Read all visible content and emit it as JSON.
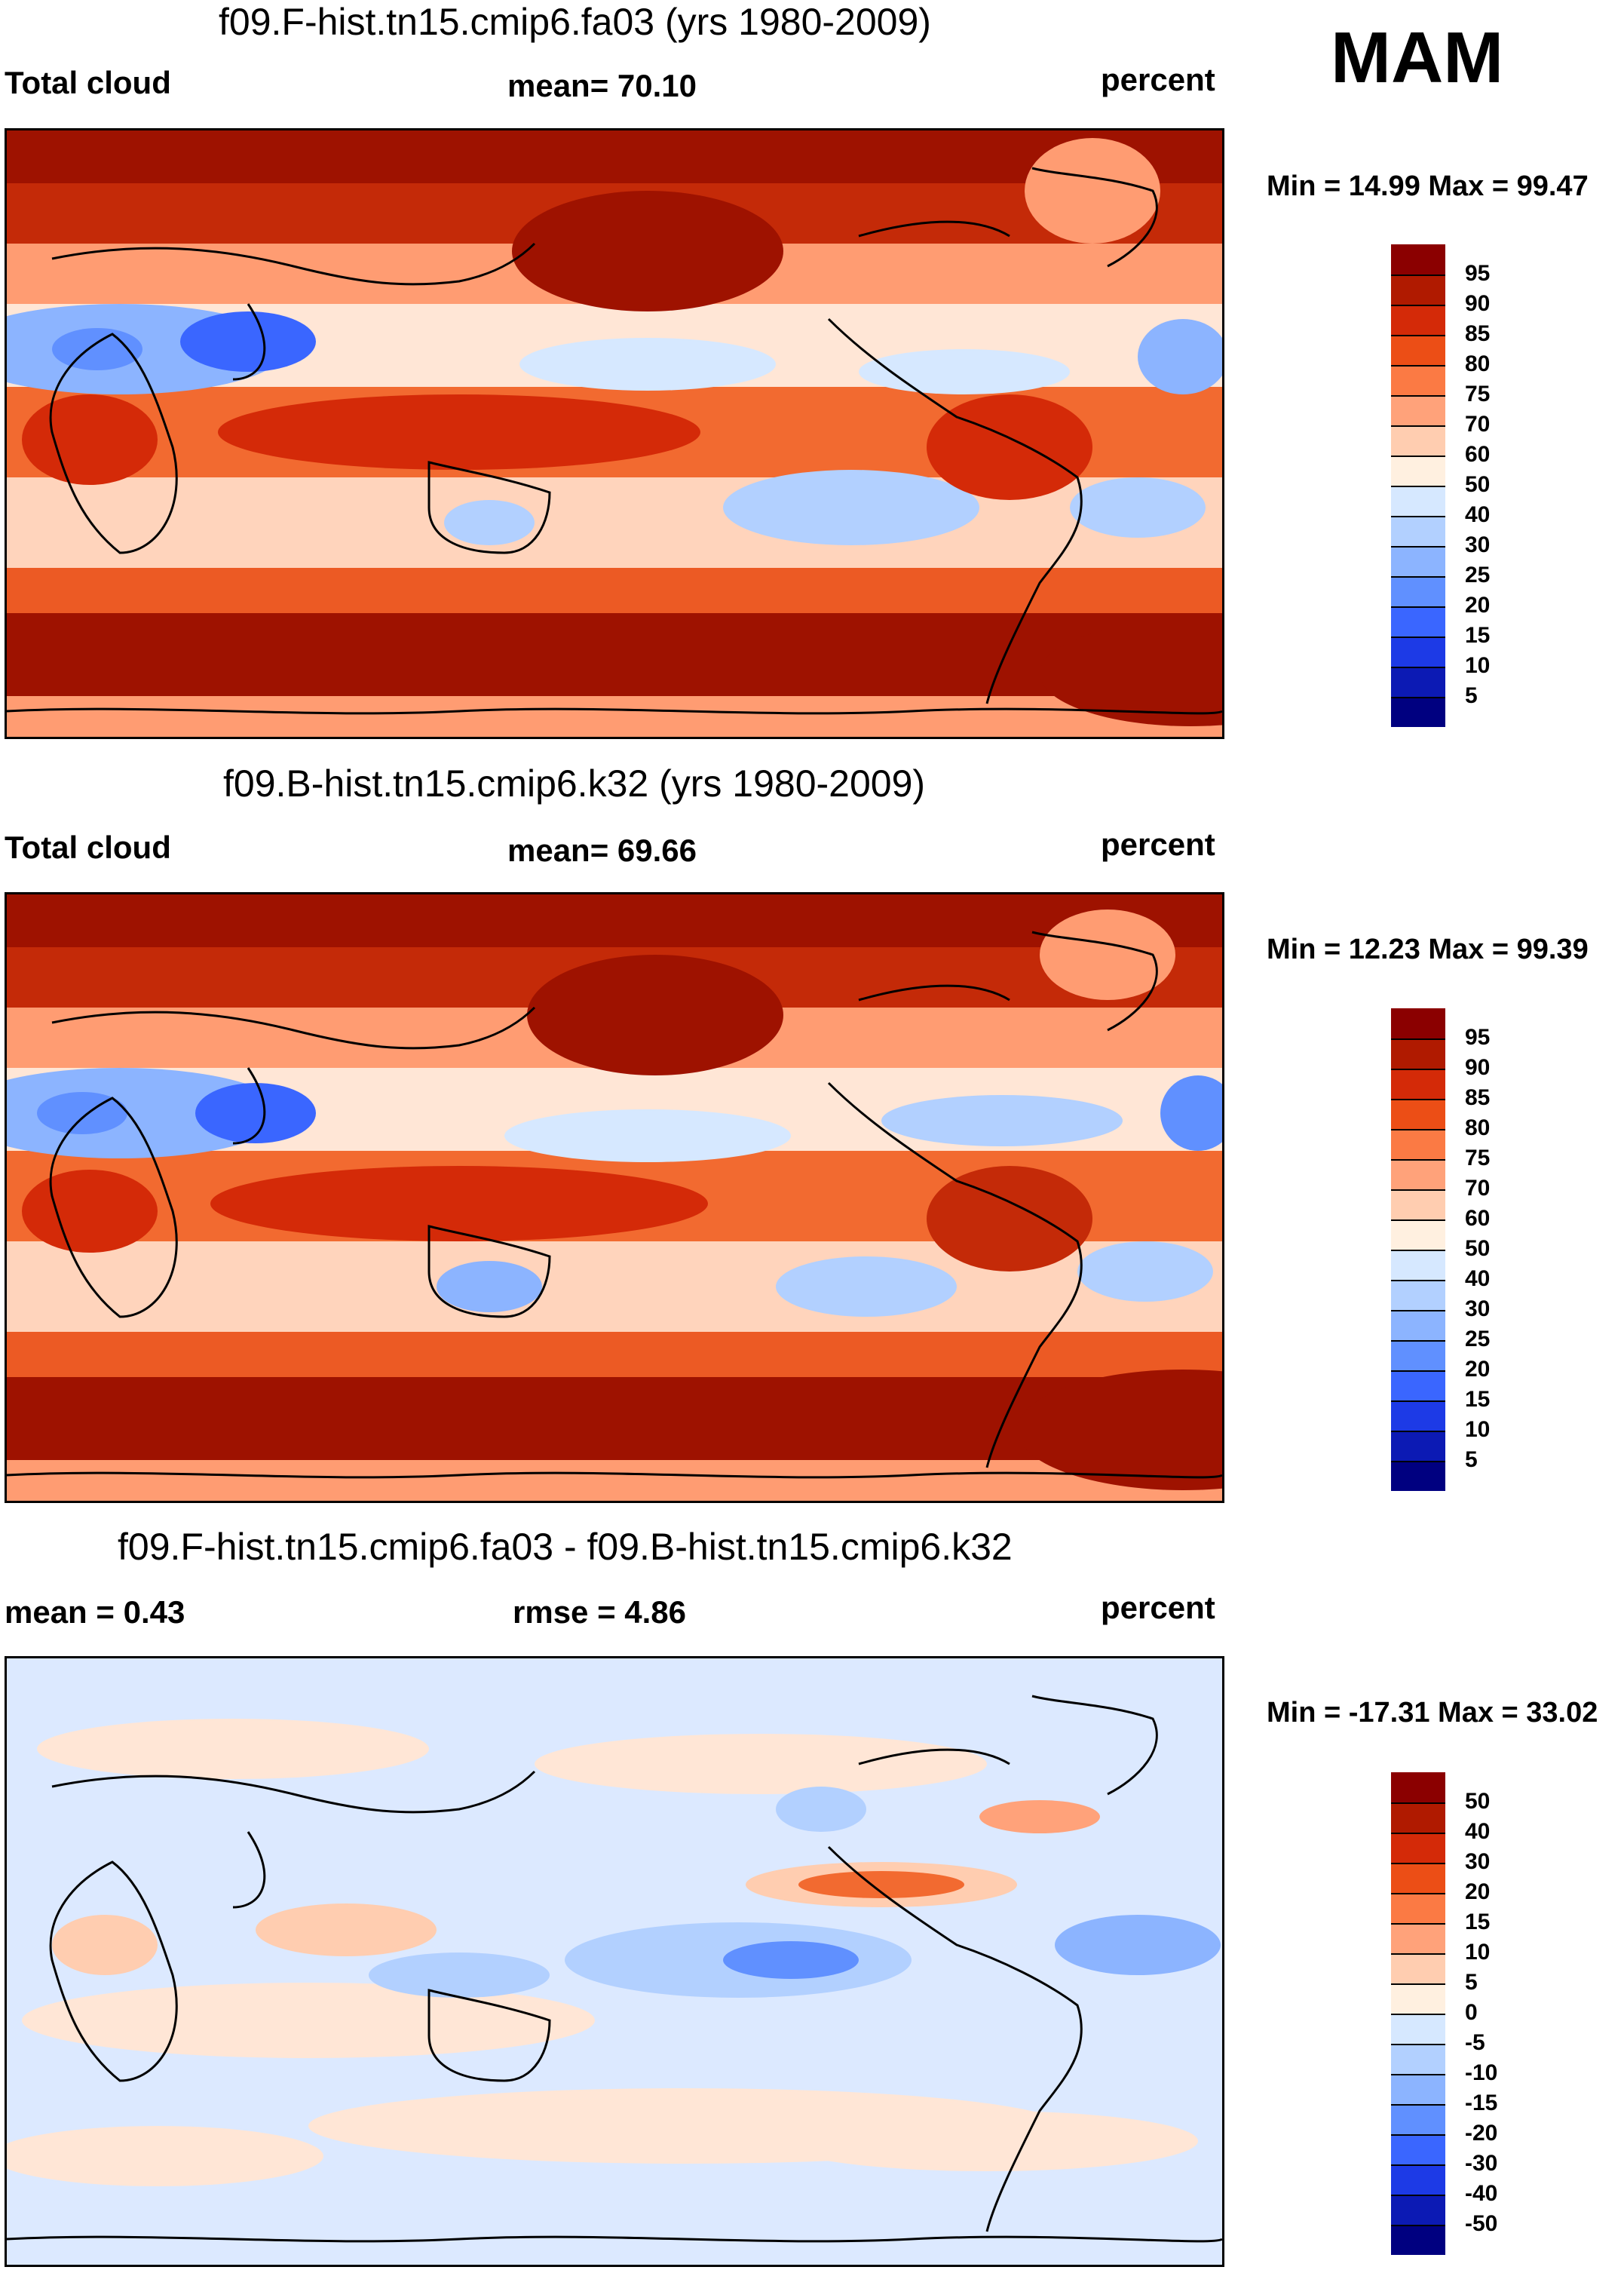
{
  "season": "MAM",
  "panels": [
    {
      "title": "f09.F-hist.tn15.cmip6.fa03 (yrs 1980-2009)",
      "left_label": "Total cloud",
      "mid_label": "mean=  70.10",
      "right_label": "percent",
      "minmax": "Min =  14.99 Max =  99.47",
      "colorbar": {
        "labels": [
          "95",
          "90",
          "85",
          "80",
          "75",
          "70",
          "60",
          "50",
          "40",
          "30",
          "25",
          "20",
          "15",
          "10",
          "5"
        ],
        "colors": [
          "#8b0000",
          "#b01a00",
          "#d42a08",
          "#ec4e16",
          "#fb7a44",
          "#ffa27a",
          "#ffcdb0",
          "#fff0e0",
          "#d6e8ff",
          "#b2d0ff",
          "#8cb4ff",
          "#6090ff",
          "#3a66ff",
          "#1d3ae6",
          "#0c1ab4",
          "#000080"
        ]
      }
    },
    {
      "title": "f09.B-hist.tn15.cmip6.k32 (yrs 1980-2009)",
      "left_label": "Total cloud",
      "mid_label": "mean=  69.66",
      "right_label": "percent",
      "minmax": "Min =  12.23 Max =  99.39",
      "colorbar": {
        "labels": [
          "95",
          "90",
          "85",
          "80",
          "75",
          "70",
          "60",
          "50",
          "40",
          "30",
          "25",
          "20",
          "15",
          "10",
          "5"
        ],
        "colors": [
          "#8b0000",
          "#b01a00",
          "#d42a08",
          "#ec4e16",
          "#fb7a44",
          "#ffa27a",
          "#ffcdb0",
          "#fff0e0",
          "#d6e8ff",
          "#b2d0ff",
          "#8cb4ff",
          "#6090ff",
          "#3a66ff",
          "#1d3ae6",
          "#0c1ab4",
          "#000080"
        ]
      }
    },
    {
      "title": "f09.F-hist.tn15.cmip6.fa03 - f09.B-hist.tn15.cmip6.k32",
      "left_label": "mean =   0.43",
      "mid_label": "rmse =   4.86",
      "right_label": "percent",
      "minmax": "Min = -17.31 Max =  33.02",
      "colorbar": {
        "labels": [
          "50",
          "40",
          "30",
          "20",
          "15",
          "10",
          "5",
          "0",
          "-5",
          "-10",
          "-15",
          "-20",
          "-30",
          "-40",
          "-50"
        ],
        "colors": [
          "#8b0000",
          "#b01a00",
          "#d42a08",
          "#ec4e16",
          "#fb7a44",
          "#ffa27a",
          "#ffcdb0",
          "#fff0e0",
          "#d6e8ff",
          "#b2d0ff",
          "#8cb4ff",
          "#6090ff",
          "#3a66ff",
          "#1d3ae6",
          "#0c1ab4",
          "#000080"
        ]
      }
    }
  ]
}
